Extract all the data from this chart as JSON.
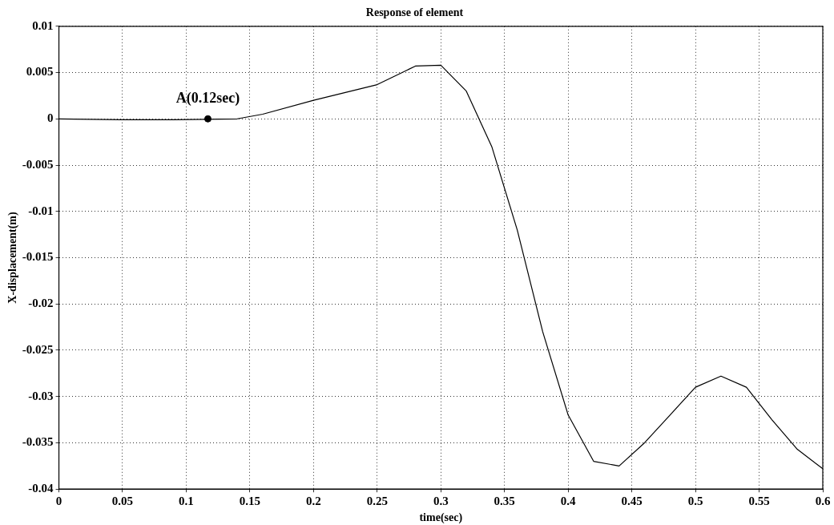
{
  "chart_data": {
    "type": "line",
    "title": "Response of element",
    "xlabel": "time(sec)",
    "ylabel": "X-displacement(m)",
    "xlim": [
      0,
      0.6
    ],
    "xticks": [
      0,
      0.05,
      0.1,
      0.15,
      0.2,
      0.25,
      0.3,
      0.35,
      0.4,
      0.45,
      0.5,
      0.55,
      0.6
    ],
    "ylim": [
      -0.04,
      0.01
    ],
    "yticks": [
      -0.04,
      -0.035,
      -0.03,
      -0.025,
      -0.02,
      -0.015,
      -0.01,
      -0.005,
      0,
      0.005,
      0.01
    ],
    "grid": true,
    "legend": false,
    "series": [
      {
        "type": "line",
        "color": "#000000",
        "marker": "none",
        "line_style": "solid",
        "x": [
          0,
          0.05,
          0.09,
          0.14,
          0.16,
          0.2,
          0.25,
          0.28,
          0.3,
          0.32,
          0.34,
          0.36,
          0.38,
          0.4,
          0.42,
          0.44,
          0.46,
          0.48,
          0.5,
          0.52,
          0.54,
          0.56,
          0.58,
          0.6
        ],
        "values": [
          0,
          -0.0001,
          -0.0001,
          0,
          0.0005,
          0.002,
          0.0037,
          0.0057,
          0.0058,
          0.003,
          -0.003,
          -0.012,
          -0.023,
          -0.032,
          -0.037,
          -0.0375,
          -0.035,
          -0.032,
          -0.029,
          -0.0278,
          -0.029,
          -0.0325,
          -0.0357,
          -0.0378
        ]
      },
      {
        "type": "scatter",
        "color": "#000000",
        "marker": "circle",
        "x": [
          0.117
        ],
        "values": [
          0
        ]
      }
    ],
    "annotations": [
      {
        "text": "A(0.12sec)",
        "x": 0.117,
        "y": 0
      }
    ]
  }
}
